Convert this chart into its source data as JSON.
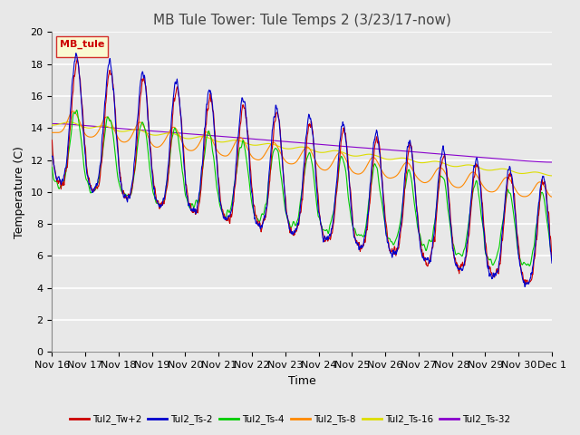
{
  "title": "MB Tule Tower: Tule Temps 2 (3/23/17-now)",
  "xlabel": "Time",
  "ylabel": "Temperature (C)",
  "ylim": [
    0,
    20
  ],
  "x_tick_labels": [
    "Nov 16",
    "Nov 17",
    "Nov 18",
    "Nov 19",
    "Nov 20",
    "Nov 21",
    "Nov 22",
    "Nov 23",
    "Nov 24",
    "Nov 25",
    "Nov 26",
    "Nov 27",
    "Nov 28",
    "Nov 29",
    "Nov 30",
    "Dec 1"
  ],
  "legend_label": "MB_tule",
  "series_labels": [
    "Tul2_Tw+2",
    "Tul2_Ts-2",
    "Tul2_Ts-4",
    "Tul2_Ts-8",
    "Tul2_Ts-16",
    "Tul2_Ts-32"
  ],
  "series_colors": [
    "#cc0000",
    "#0000cc",
    "#00cc00",
    "#ff8800",
    "#dddd00",
    "#8800cc"
  ],
  "background_color": "#e8e8e8",
  "plot_bg_color": "#e8e8e8",
  "grid_color": "#ffffff",
  "title_fontsize": 11,
  "axis_fontsize": 9,
  "tick_fontsize": 8
}
